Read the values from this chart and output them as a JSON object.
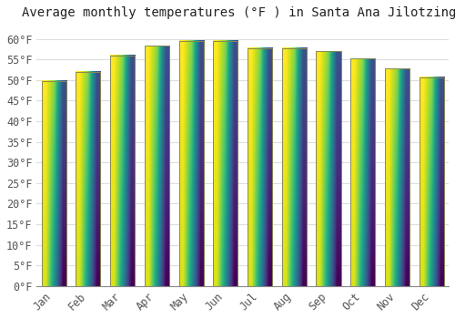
{
  "title": "Average monthly temperatures (°F ) in Santa Ana Jilotzingo",
  "months": [
    "Jan",
    "Feb",
    "Mar",
    "Apr",
    "May",
    "Jun",
    "Jul",
    "Aug",
    "Sep",
    "Oct",
    "Nov",
    "Dec"
  ],
  "values": [
    49.8,
    52.0,
    56.0,
    58.3,
    59.5,
    59.5,
    57.8,
    57.8,
    57.0,
    55.2,
    52.8,
    50.7
  ],
  "bar_color_top": "#FFD040",
  "bar_color_bottom": "#F08000",
  "bar_edge_color": "#888855",
  "background_color": "#FFFFFF",
  "plot_bg_color": "#FFFFFF",
  "grid_color": "#DDDDDD",
  "tick_label_color": "#555555",
  "title_color": "#222222",
  "ylim": [
    0,
    63
  ],
  "yticks": [
    0,
    5,
    10,
    15,
    20,
    25,
    30,
    35,
    40,
    45,
    50,
    55,
    60
  ],
  "ytick_labels": [
    "0°F",
    "5°F",
    "10°F",
    "15°F",
    "20°F",
    "25°F",
    "30°F",
    "35°F",
    "40°F",
    "45°F",
    "50°F",
    "55°F",
    "60°F"
  ],
  "title_fontsize": 10,
  "tick_fontsize": 8.5,
  "bar_width": 0.72
}
